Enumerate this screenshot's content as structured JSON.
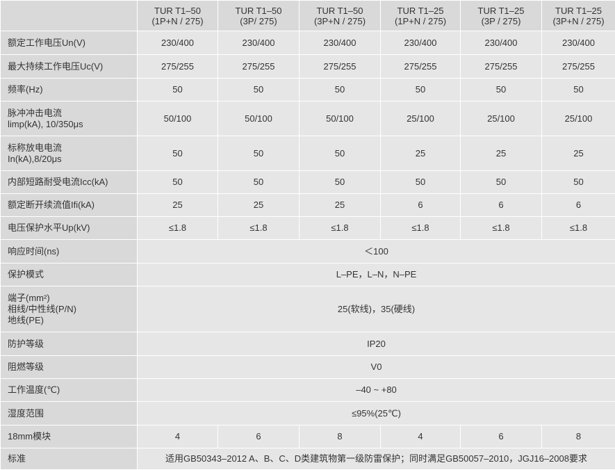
{
  "header": {
    "columns": [
      [
        "TUR T1–50",
        "(1P+N / 275)"
      ],
      [
        "TUR T1–50",
        "(3P/ 275)"
      ],
      [
        "TUR T1–50",
        "(3P+N / 275)"
      ],
      [
        "TUR T1–25",
        "(1P+N / 275)"
      ],
      [
        "TUR T1–25",
        "(3P / 275)"
      ],
      [
        "TUR T1–25",
        "(3P+N / 275)"
      ]
    ]
  },
  "rows": [
    {
      "label": [
        "额定工作电压Un(V)"
      ],
      "values": [
        "230/400",
        "230/400",
        "230/400",
        "230/400",
        "230/400",
        "230/400"
      ]
    },
    {
      "label": [
        "最大持续工作电压Uc(V)"
      ],
      "values": [
        "275/255",
        "275/255",
        "275/255",
        "275/255",
        "275/255",
        "275/255"
      ]
    },
    {
      "label": [
        "频率(Hz)"
      ],
      "values": [
        "50",
        "50",
        "50",
        "50",
        "50",
        "50"
      ]
    },
    {
      "label": [
        "脉冲冲击电流",
        "limp(kA), 10/350μs"
      ],
      "values": [
        "50/100",
        "50/100",
        "50/100",
        "25/100",
        "25/100",
        "25/100"
      ]
    },
    {
      "label": [
        "标称放电电流",
        "In(kA),8/20μs"
      ],
      "values": [
        "50",
        "50",
        "50",
        "25",
        "25",
        "25"
      ]
    },
    {
      "label": [
        "内部短路耐受电流Icc(kA)"
      ],
      "values": [
        "50",
        "50",
        "50",
        "50",
        "50",
        "50"
      ]
    },
    {
      "label": [
        "额定断开续流值Ifi(kA)"
      ],
      "values": [
        "25",
        "25",
        "25",
        "6",
        "6",
        "6"
      ]
    },
    {
      "label": [
        "电压保护水平Up(kV)"
      ],
      "values": [
        "≤1.8",
        "≤1.8",
        "≤1.8",
        "≤1.8",
        "≤1.8",
        "≤1.8"
      ]
    },
    {
      "label": [
        "响应时间(ns)"
      ],
      "span": "＜100"
    },
    {
      "label": [
        "保护模式"
      ],
      "span": "L–PE，L–N，N–PE"
    },
    {
      "label": [
        "端子(mm²)",
        "相线/中性线(P/N)",
        "地线(PE)"
      ],
      "span": "25(软线)，35(硬线)"
    },
    {
      "label": [
        "防护等级"
      ],
      "span": "IP20"
    },
    {
      "label": [
        "阻燃等级"
      ],
      "span": "V0"
    },
    {
      "label": [
        "工作温度(℃)"
      ],
      "span": "–40 ~ +80"
    },
    {
      "label": [
        "湿度范围"
      ],
      "span": "≤95%(25℃)"
    },
    {
      "label": [
        "18mm模块"
      ],
      "values": [
        "4",
        "6",
        "8",
        "4",
        "6",
        "8"
      ]
    },
    {
      "label": [
        "标准"
      ],
      "span": "适用GB50343–2012 A、B、C、D类建筑物第一级防雷保护；同时满足GB50057–2010，JGJ16–2008要求"
    }
  ]
}
